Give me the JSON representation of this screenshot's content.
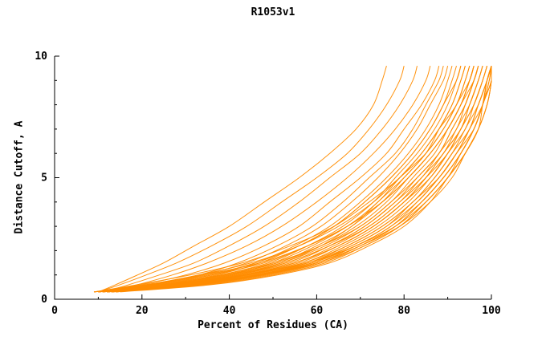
{
  "chart_data": {
    "type": "line",
    "title": "R1053v1",
    "xlabel": "Percent of Residues (CA)",
    "ylabel": "Distance Cutoff, A",
    "xlim": [
      0,
      100
    ],
    "ylim": [
      0,
      10
    ],
    "x_major_ticks": [
      0,
      20,
      40,
      60,
      80,
      100
    ],
    "x_minor_step": 10,
    "y_major_ticks": [
      0,
      5,
      10
    ],
    "y_minor_step": 1,
    "grid": false,
    "legend_position": "none",
    "line_color": "#ff8c00",
    "axis_color": "#000000",
    "series_y_grid": [
      0.3,
      0.6,
      1.0,
      1.5,
      2.2,
      3.0,
      4.0,
      5.0,
      6.0,
      7.0,
      8.0,
      9.0,
      9.6
    ],
    "series_x": [
      [
        10,
        14,
        19,
        25,
        32,
        40,
        48,
        56,
        63,
        69,
        73,
        75,
        76
      ],
      [
        10,
        15,
        21,
        28,
        36,
        44,
        52,
        60,
        67,
        72,
        76,
        79,
        80
      ],
      [
        11,
        17,
        24,
        32,
        40,
        48,
        56,
        63,
        70,
        75,
        79,
        82,
        83
      ],
      [
        12,
        19,
        27,
        35,
        44,
        52,
        60,
        67,
        73,
        78,
        82,
        85,
        86
      ],
      [
        9,
        20,
        30,
        39,
        48,
        56,
        63,
        70,
        76,
        80,
        84,
        87,
        88
      ],
      [
        10,
        22,
        33,
        42,
        51,
        59,
        66,
        72,
        78,
        82,
        85,
        88,
        89
      ],
      [
        11,
        23,
        34,
        44,
        53,
        61,
        68,
        74,
        79,
        83,
        86,
        89,
        90
      ],
      [
        10,
        24,
        36,
        46,
        55,
        63,
        70,
        76,
        81,
        85,
        88,
        90,
        91
      ],
      [
        12,
        25,
        37,
        47,
        56,
        64,
        71,
        77,
        82,
        86,
        89,
        91,
        92
      ],
      [
        9,
        22,
        35,
        46,
        56,
        64,
        71,
        77,
        82,
        86,
        89,
        92,
        93
      ],
      [
        10,
        26,
        38,
        49,
        58,
        66,
        73,
        78,
        83,
        87,
        90,
        92,
        93
      ],
      [
        11,
        27,
        40,
        50,
        59,
        67,
        74,
        79,
        84,
        88,
        91,
        93,
        94
      ],
      [
        12,
        28,
        41,
        52,
        61,
        68,
        75,
        80,
        85,
        88,
        91,
        93,
        94
      ],
      [
        10,
        25,
        39,
        51,
        60,
        68,
        74,
        80,
        85,
        89,
        92,
        94,
        95
      ],
      [
        9,
        24,
        38,
        50,
        61,
        69,
        76,
        81,
        86,
        90,
        93,
        95,
        96
      ],
      [
        11,
        26,
        40,
        52,
        62,
        70,
        77,
        82,
        87,
        90,
        93,
        95,
        96
      ],
      [
        12,
        28,
        42,
        54,
        63,
        71,
        78,
        83,
        88,
        91,
        94,
        96,
        97
      ],
      [
        10,
        27,
        41,
        53,
        63,
        71,
        78,
        84,
        88,
        92,
        94,
        96,
        97
      ],
      [
        11,
        29,
        43,
        55,
        64,
        72,
        79,
        84,
        89,
        92,
        95,
        97,
        98
      ],
      [
        12,
        30,
        44,
        56,
        65,
        73,
        80,
        85,
        89,
        93,
        95,
        97,
        98
      ],
      [
        10,
        28,
        43,
        55,
        65,
        73,
        80,
        86,
        90,
        93,
        96,
        98,
        99
      ],
      [
        11,
        30,
        45,
        57,
        66,
        74,
        81,
        86,
        90,
        94,
        96,
        98,
        99
      ],
      [
        12,
        31,
        46,
        58,
        67,
        75,
        82,
        87,
        91,
        94,
        97,
        99,
        100
      ],
      [
        13,
        32,
        47,
        59,
        68,
        76,
        82,
        88,
        92,
        95,
        97,
        99,
        100
      ],
      [
        11,
        29,
        44,
        57,
        67,
        75,
        82,
        87,
        91,
        95,
        97,
        99,
        100
      ],
      [
        10,
        31,
        46,
        58,
        68,
        76,
        83,
        88,
        92,
        95,
        98,
        99.5,
        100
      ],
      [
        13,
        33,
        48,
        60,
        69,
        77,
        83,
        88,
        92,
        96,
        98,
        100,
        100
      ],
      [
        12,
        32,
        47,
        60,
        70,
        78,
        84,
        89,
        93,
        96,
        98,
        99.5,
        100
      ],
      [
        14,
        34,
        49,
        61,
        70,
        78,
        84,
        89,
        93,
        96,
        98,
        100,
        100
      ],
      [
        13,
        35,
        50,
        62,
        71,
        79,
        85,
        90,
        93,
        96,
        98,
        99,
        100
      ],
      [
        15,
        36,
        51,
        63,
        72,
        80,
        86,
        90,
        94,
        97,
        99,
        100,
        100
      ],
      [
        14,
        33,
        48,
        61,
        71,
        79,
        85,
        90,
        94,
        97,
        99,
        100,
        100
      ],
      [
        12,
        30,
        46,
        59,
        69,
        78,
        85,
        90,
        94,
        97,
        98,
        99,
        100
      ],
      [
        11,
        28,
        44,
        58,
        69,
        77,
        84,
        89,
        93,
        96,
        98,
        99,
        100
      ],
      [
        13,
        31,
        47,
        60,
        70,
        79,
        86,
        91,
        94,
        97,
        99,
        100,
        100
      ],
      [
        10,
        23,
        36,
        48,
        58,
        67,
        75,
        81,
        86,
        90,
        93,
        96,
        97
      ],
      [
        9,
        21,
        33,
        45,
        56,
        65,
        73,
        79,
        85,
        89,
        92,
        95,
        96
      ],
      [
        12,
        26,
        39,
        51,
        61,
        70,
        77,
        83,
        88,
        91,
        94,
        96,
        97
      ],
      [
        14,
        30,
        44,
        55,
        65,
        73,
        80,
        85,
        89,
        93,
        95,
        97,
        98
      ],
      [
        9,
        19,
        31,
        43,
        54,
        64,
        72,
        79,
        84,
        88,
        92,
        94,
        95
      ],
      [
        10,
        21,
        34,
        47,
        58,
        67,
        75,
        81,
        86,
        90,
        93,
        95,
        96
      ],
      [
        13,
        29,
        42,
        53,
        63,
        72,
        79,
        85,
        90,
        93,
        96,
        98,
        99
      ]
    ]
  }
}
